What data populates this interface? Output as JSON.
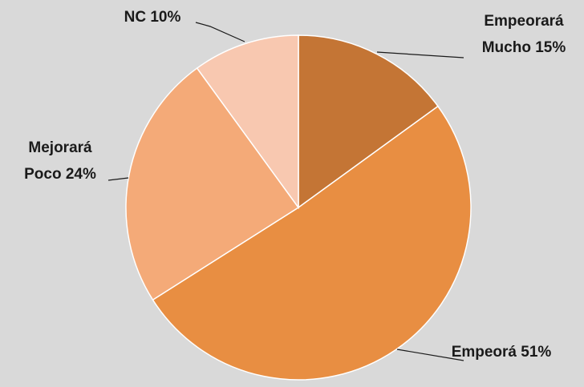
{
  "chart_data": {
    "type": "pie",
    "categories": [
      "Empeorará Mucho",
      "Empeorá",
      "Mejorará Poco",
      "NC"
    ],
    "values": [
      15,
      51,
      24,
      10
    ],
    "value_labels": [
      "15%",
      "51%",
      "24%",
      "10%"
    ],
    "colors": [
      "#c47535",
      "#e88e42",
      "#f4aa78",
      "#f8c8b0"
    ]
  }
}
